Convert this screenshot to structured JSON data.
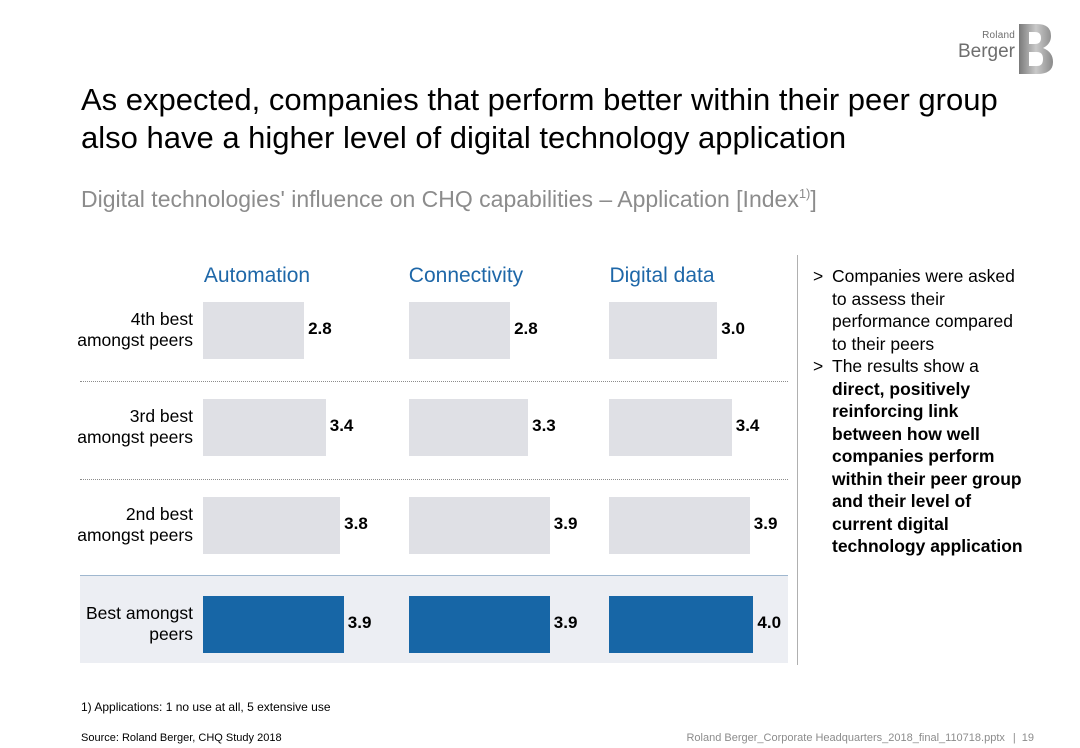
{
  "brand": {
    "line1": "Roland",
    "line2": "Berger",
    "mark": "B"
  },
  "title": "As expected, companies that perform better within their peer group also have a higher level of digital technology application",
  "subtitle": {
    "text": "Digital technologies' influence on CHQ capabilities – Application [Index",
    "sup": "1)",
    "close": "]"
  },
  "chart_data": {
    "type": "bar",
    "orientation": "horizontal",
    "categories": [
      "4th best amongst peers",
      "3rd best amongst peers",
      "2nd best amongst peers",
      "Best amongst peers"
    ],
    "category_labels": [
      [
        "4th best",
        "amongst peers"
      ],
      [
        "3rd best",
        "amongst peers"
      ],
      [
        "2nd best",
        "amongst peers"
      ],
      [
        "Best amongst",
        "peers"
      ]
    ],
    "series": [
      {
        "name": "Automation",
        "values": [
          2.8,
          3.4,
          3.8,
          3.9
        ],
        "labels": [
          "2.8",
          "3.4",
          "3.8",
          "3.9"
        ]
      },
      {
        "name": "Connectivity",
        "values": [
          2.8,
          3.3,
          3.9,
          3.9
        ],
        "labels": [
          "2.8",
          "3.3",
          "3.9",
          "3.9"
        ]
      },
      {
        "name": "Digital data",
        "values": [
          3.0,
          3.4,
          3.9,
          4.0
        ],
        "labels": [
          "3.0",
          "3.4",
          "3.9",
          "4.0"
        ]
      }
    ],
    "xlim": [
      0,
      5
    ],
    "highlight_category": "Best amongst peers",
    "colors": {
      "default": "#dfe0e5",
      "highlight": "#1766a6",
      "header": "#1e67a8"
    }
  },
  "bullets": [
    {
      "mark": ">",
      "text": "Companies were asked to assess their performance compared to their peers",
      "strong": ""
    },
    {
      "mark": ">",
      "text": "The results show a ",
      "strong": "direct, positively reinforcing link between how well companies perform within their peer group and their level of current digital technology application"
    }
  ],
  "footnote": "1) Applications: 1 no use at all, 5 extensive use",
  "source": "Source: Roland Berger, CHQ Study 2018",
  "file": "Roland Berger_Corporate Headquarters_2018_final_110718.pptx",
  "page_number": "19"
}
